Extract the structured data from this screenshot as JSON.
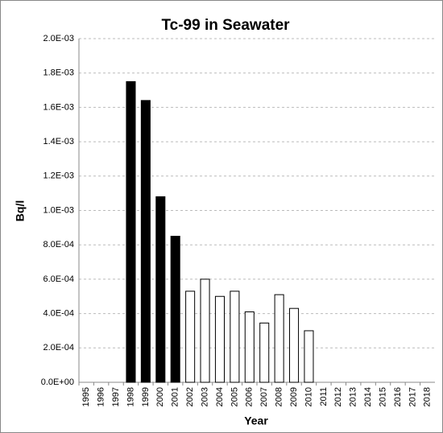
{
  "chart_data": {
    "type": "bar",
    "title": "Tc-99 in Seawater",
    "x_label": "Year",
    "y_label": "Bq/l",
    "categories": [
      "1995",
      "1996",
      "1997",
      "1998",
      "1999",
      "2000",
      "2001",
      "2002",
      "2003",
      "2004",
      "2005",
      "2006",
      "2007",
      "2008",
      "2009",
      "2010",
      "2011",
      "2012",
      "2013",
      "2014",
      "2015",
      "2016",
      "2017",
      "2018"
    ],
    "values": [
      null,
      null,
      null,
      0.00175,
      0.00164,
      0.00108,
      0.00085,
      0.00053,
      0.0006,
      0.0005,
      0.00053,
      0.00041,
      0.000345,
      0.00051,
      0.00043,
      0.0003,
      null,
      null,
      null,
      null,
      null,
      null,
      null,
      null
    ],
    "colors": [
      null,
      null,
      null,
      "#000000",
      "#000000",
      "#000000",
      "#000000",
      "#ffffff",
      "#ffffff",
      "#ffffff",
      "#ffffff",
      "#ffffff",
      "#ffffff",
      "#ffffff",
      "#ffffff",
      "#ffffff",
      null,
      null,
      null,
      null,
      null,
      null,
      null,
      null
    ],
    "ylim": [
      0,
      0.002
    ],
    "yticks": [
      {
        "value": 0,
        "label": "0.0E+00"
      },
      {
        "value": 0.0002,
        "label": "2.0E-04"
      },
      {
        "value": 0.0004,
        "label": "4.0E-04"
      },
      {
        "value": 0.0006,
        "label": "6.0E-04"
      },
      {
        "value": 0.0008,
        "label": "8.0E-04"
      },
      {
        "value": 0.001,
        "label": "1.0E-03"
      },
      {
        "value": 0.0012,
        "label": "1.2E-03"
      },
      {
        "value": 0.0014,
        "label": "1.4E-03"
      },
      {
        "value": 0.0016,
        "label": "1.6E-03"
      },
      {
        "value": 0.0018,
        "label": "1.8E-03"
      },
      {
        "value": 0.002,
        "label": "2.0E-03"
      }
    ],
    "grid": true
  }
}
